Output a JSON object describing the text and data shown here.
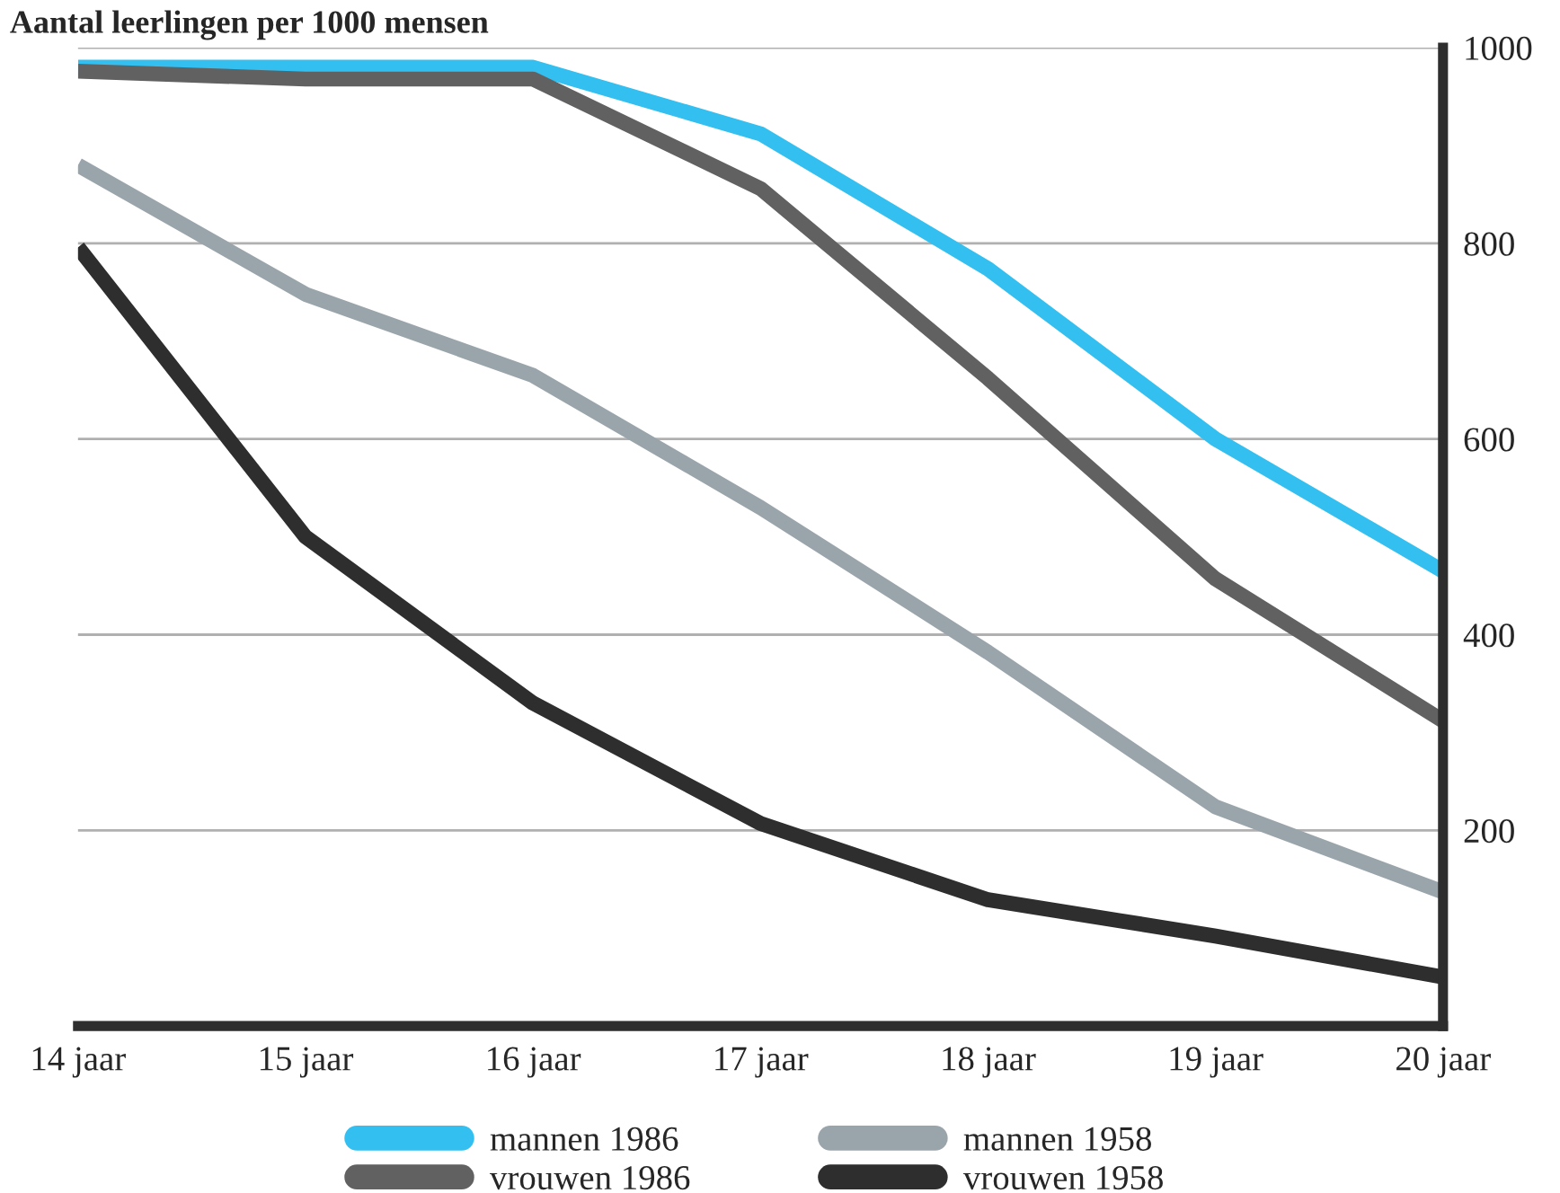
{
  "chart_data": {
    "type": "line",
    "title": "Aantal leerlingen per 1000 mensen",
    "categories": [
      "14 jaar",
      "15 jaar",
      "16 jaar",
      "17 jaar",
      "18 jaar",
      "19 jaar",
      "20 jaar"
    ],
    "series": [
      {
        "name": "mannen 1986",
        "color": "#33bff0",
        "values": [
          980,
          980,
          980,
          912,
          774,
          600,
          465
        ]
      },
      {
        "name": "vrouwen 1986",
        "color": "#616161",
        "values": [
          976,
          968,
          968,
          856,
          662,
          457,
          312
        ]
      },
      {
        "name": "mannen 1958",
        "color": "#9aa5ab",
        "values": [
          880,
          748,
          665,
          530,
          382,
          224,
          137
        ]
      },
      {
        "name": "vrouwen 1958",
        "color": "#2e2e2e",
        "values": [
          796,
          500,
          330,
          207,
          129,
          92,
          50
        ]
      }
    ],
    "ylim": [
      0,
      1000
    ],
    "yticks": [
      200,
      400,
      600,
      800,
      1000
    ],
    "grid": "y",
    "legend": "bottom",
    "marker": "none",
    "line_style": "solid"
  }
}
